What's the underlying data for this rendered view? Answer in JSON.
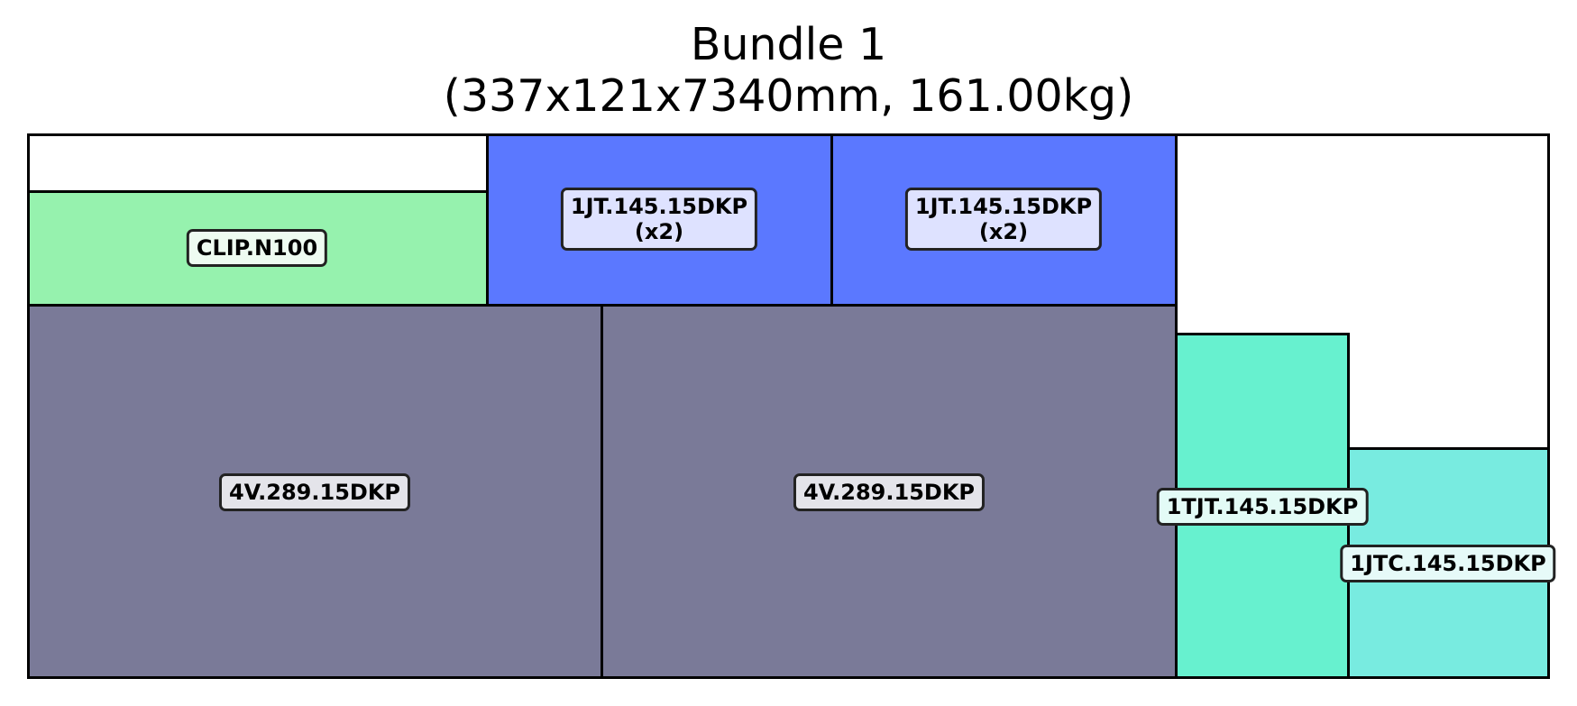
{
  "title": {
    "line1": "Bundle 1",
    "line2": "(337x121x7340mm, 161.00kg)"
  },
  "items": [
    {
      "id": "clip",
      "label": "CLIP.N100",
      "qty": "",
      "color": "#96f2ae"
    },
    {
      "id": "jt1",
      "label": "1JT.145.15DKP",
      "qty": "(x2)",
      "color": "#5b78ff"
    },
    {
      "id": "jt2",
      "label": "1JT.145.15DKP",
      "qty": "(x2)",
      "color": "#5b78ff"
    },
    {
      "id": "v1",
      "label": "4V.289.15DKP",
      "qty": "",
      "color": "#7a7a98"
    },
    {
      "id": "v2",
      "label": "4V.289.15DKP",
      "qty": "",
      "color": "#7a7a98"
    },
    {
      "id": "tjt",
      "label": "1TJT.145.15DKP",
      "qty": "",
      "color": "#67f1cf"
    },
    {
      "id": "jtc",
      "label": "1JTC.145.15DKP",
      "qty": "",
      "color": "#78ebe0"
    }
  ]
}
